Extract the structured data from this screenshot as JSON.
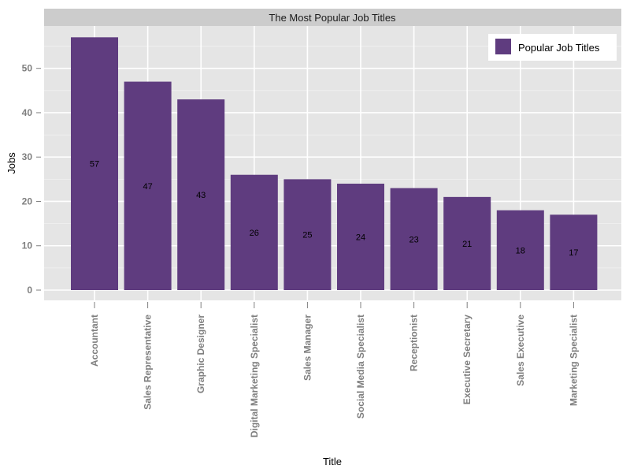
{
  "chart_data": {
    "type": "bar",
    "title": "The Most Popular Job Titles",
    "xlabel": "Title",
    "ylabel": "Jobs",
    "ylim": [
      -2,
      58
    ],
    "yticks": [
      0,
      10,
      20,
      30,
      40,
      50
    ],
    "grid": true,
    "legend": {
      "placement": "top-right",
      "entries": [
        "Popular Job Titles"
      ]
    },
    "colors": {
      "bar": "#5f3c7f",
      "panel": "#e5e5e5",
      "strip": "#cccccc",
      "grid": "#ffffff"
    },
    "categories": [
      "Accountant",
      "Sales Representative",
      "Graphic Designer",
      "Digital Marketing Specialist",
      "Sales Manager",
      "Social Media Specialist",
      "Receptionist",
      "Executive Secretary",
      "Sales Executive",
      "Marketing Specialist"
    ],
    "series": [
      {
        "name": "Popular Job Titles",
        "values": [
          57,
          47,
          43,
          26,
          25,
          24,
          23,
          21,
          18,
          17
        ]
      }
    ]
  }
}
